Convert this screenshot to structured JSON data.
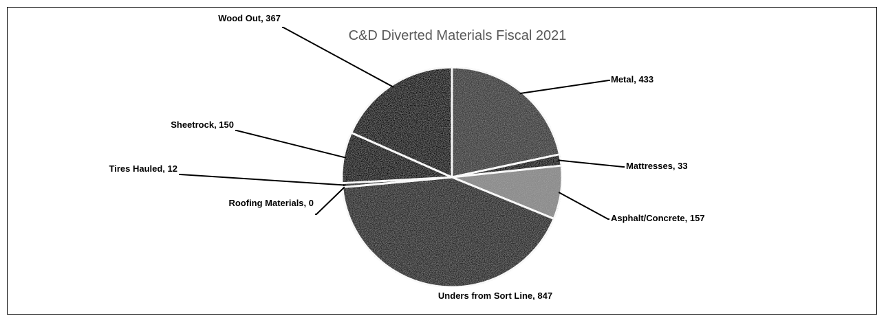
{
  "chart_data": {
    "type": "pie",
    "title": "C&D Diverted Materials Fiscal 2021",
    "slices": [
      {
        "label": "Metal",
        "value": 433,
        "text": "Metal, 433",
        "color": "#3a3a3a"
      },
      {
        "label": "Mattresses",
        "value": 33,
        "text": "Mattresses, 33",
        "color": "#111111"
      },
      {
        "label": "Asphalt/Concrete",
        "value": 157,
        "text": "Asphalt/Concrete, 157",
        "color": "#8a8a8a"
      },
      {
        "label": "Unders from Sort Line",
        "value": 847,
        "text": "Unders from Sort Line, 847",
        "color": "#262626"
      },
      {
        "label": "Roofing Materials",
        "value": 0,
        "text": "Roofing Materials, 0",
        "color": "#5a5a5a"
      },
      {
        "label": "Tires Hauled",
        "value": 12,
        "text": "Tires Hauled, 12",
        "color": "#1a1a1a"
      },
      {
        "label": "Sheetrock",
        "value": 150,
        "text": "Sheetrock, 150",
        "color": "#0f0f0f"
      },
      {
        "label": "Wood Out",
        "value": 367,
        "text": "Wood Out, 367",
        "color": "#0a0a0a"
      }
    ],
    "legend": "none"
  }
}
